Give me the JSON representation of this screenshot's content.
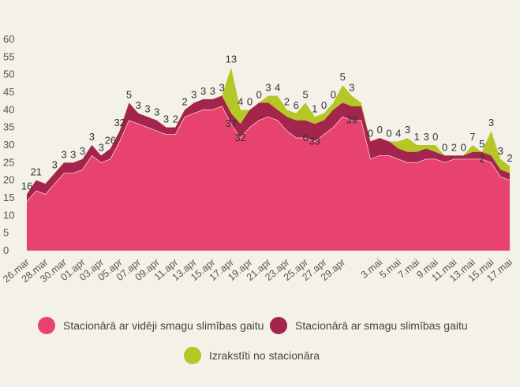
{
  "chart_data": {
    "type": "area",
    "stacked": true,
    "yticks": [
      0,
      5,
      10,
      15,
      20,
      25,
      30,
      35,
      40,
      45,
      50,
      55,
      60
    ],
    "ylim": [
      0,
      60
    ],
    "xtick_labels": [
      "26.mar",
      "28.mar",
      "30.mar",
      "01.apr",
      "03.apr",
      "05.apr",
      "07.apr",
      "09.apr",
      "11.apr",
      "13.apr",
      "15.apr",
      "17.apr",
      "19.apr",
      "21.apr",
      "23.apr",
      "25.apr",
      "27.apr",
      "29.apr",
      "3.mai",
      "5.mai",
      "7.mai",
      "9.mai",
      "11.mai",
      "13.mai",
      "15.mai",
      "17.mai"
    ],
    "x": [
      "26.mar",
      "27.mar",
      "28.mar",
      "29.mar",
      "30.mar",
      "31.mar",
      "01.apr",
      "02.apr",
      "03.apr",
      "04.apr",
      "05.apr",
      "06.apr",
      "07.apr",
      "08.apr",
      "09.apr",
      "10.apr",
      "11.apr",
      "12.apr",
      "13.apr",
      "14.apr",
      "15.apr",
      "16.apr",
      "17.apr",
      "18.apr",
      "19.apr",
      "20.apr",
      "21.apr",
      "22.apr",
      "23.apr",
      "24.apr",
      "25.apr",
      "26.apr",
      "27.apr",
      "28.apr",
      "29.apr",
      "30.apr",
      "1.mai",
      "2.mai",
      "3.mai",
      "4.mai",
      "5.mai",
      "6.mai",
      "7.mai",
      "8.mai",
      "9.mai",
      "10.mai",
      "11.mai",
      "12.mai",
      "13.mai",
      "14.mai",
      "15.mai",
      "16.mai",
      "17.mai"
    ],
    "series": [
      {
        "name": "Stacionārā ar vidēji smagu slimības gaitu",
        "color": "#e8436e",
        "values": [
          14,
          17,
          16,
          19,
          22,
          22,
          23,
          27,
          25,
          26,
          31,
          37,
          36,
          35,
          34,
          33,
          33,
          38,
          39,
          40,
          40,
          41,
          36,
          32,
          35,
          37,
          38,
          37,
          34,
          32,
          32,
          31,
          33,
          35,
          38,
          37,
          37,
          26,
          27,
          27,
          26,
          25,
          25,
          26,
          26,
          25,
          26,
          26,
          26,
          26,
          25,
          21,
          20
        ]
      },
      {
        "name": "Stacionārā ar smagu slimības gaitu",
        "color": "#a3254e",
        "values": [
          2,
          3,
          3,
          3,
          3,
          3,
          3,
          3,
          2,
          3,
          3,
          5,
          3,
          3,
          3,
          2,
          2,
          2,
          3,
          3,
          3,
          3,
          3,
          4,
          5,
          5,
          4,
          3,
          4,
          5,
          5,
          5,
          4,
          5,
          4,
          4,
          4,
          5,
          5,
          4,
          3,
          3,
          3,
          3,
          2,
          2,
          1,
          1,
          2,
          2,
          2,
          2,
          2
        ]
      },
      {
        "name": "Izrakstīti no stacionāra",
        "color": "#b5c726",
        "values": [
          0,
          0,
          0,
          0,
          0,
          0,
          0,
          0,
          0,
          0,
          0,
          0,
          0,
          0,
          0,
          0,
          0,
          0,
          0,
          0,
          0,
          0,
          13,
          4,
          0,
          0,
          2,
          4,
          2,
          2,
          5,
          2,
          2,
          2,
          5,
          3,
          1,
          0,
          0,
          0,
          2,
          4,
          2,
          1,
          2,
          0,
          0,
          0,
          2,
          0,
          7,
          3,
          2
        ]
      }
    ],
    "annotations": [
      {
        "x": "26.mar",
        "text": "16"
      },
      {
        "x": "27.mar",
        "text": "21"
      },
      {
        "x": "29.mar",
        "text": "3"
      },
      {
        "x": "30.mar",
        "text": "3"
      },
      {
        "x": "31.mar",
        "text": "3"
      },
      {
        "x": "01.apr",
        "text": "3"
      },
      {
        "x": "02.apr",
        "text": "3"
      },
      {
        "x": "03.apr",
        "text": "3"
      },
      {
        "x": "04.apr",
        "text": "26"
      },
      {
        "x": "05.apr",
        "text": "32"
      },
      {
        "x": "06.apr",
        "text": "5"
      },
      {
        "x": "07.apr",
        "text": "3"
      },
      {
        "x": "08.apr",
        "text": "3"
      },
      {
        "x": "09.apr",
        "text": "3"
      },
      {
        "x": "10.apr",
        "text": "3"
      },
      {
        "x": "11.apr",
        "text": "2"
      },
      {
        "x": "12.apr",
        "text": "2"
      },
      {
        "x": "13.apr",
        "text": "3"
      },
      {
        "x": "14.apr",
        "text": "3"
      },
      {
        "x": "15.apr",
        "text": "3"
      },
      {
        "x": "16.apr",
        "text": "3"
      },
      {
        "x": "17.apr",
        "text": "13"
      },
      {
        "x": "17.apr",
        "text": "37"
      },
      {
        "x": "18.apr",
        "text": "4"
      },
      {
        "x": "18.apr",
        "text": "32"
      },
      {
        "x": "19.apr",
        "text": "0"
      },
      {
        "x": "20.apr",
        "text": "0"
      },
      {
        "x": "21.apr",
        "text": "3"
      },
      {
        "x": "22.apr",
        "text": "4"
      },
      {
        "x": "23.apr",
        "text": "2"
      },
      {
        "x": "24.apr",
        "text": "6"
      },
      {
        "x": "25.apr",
        "text": "5"
      },
      {
        "x": "25.apr",
        "text": "6"
      },
      {
        "x": "26.apr",
        "text": "1"
      },
      {
        "x": "26.apr",
        "text": "33"
      },
      {
        "x": "27.apr",
        "text": "0"
      },
      {
        "x": "28.apr",
        "text": "0"
      },
      {
        "x": "29.apr",
        "text": "5"
      },
      {
        "x": "30.apr",
        "text": "3"
      },
      {
        "x": "30.apr",
        "text": "39"
      },
      {
        "x": "2.mai",
        "text": "0"
      },
      {
        "x": "3.mai",
        "text": "0"
      },
      {
        "x": "4.mai",
        "text": "0"
      },
      {
        "x": "5.mai",
        "text": "4"
      },
      {
        "x": "6.mai",
        "text": "3"
      },
      {
        "x": "7.mai",
        "text": "1"
      },
      {
        "x": "8.mai",
        "text": "3"
      },
      {
        "x": "9.mai",
        "text": "0"
      },
      {
        "x": "10.mai",
        "text": "0"
      },
      {
        "x": "11.mai",
        "text": "2"
      },
      {
        "x": "12.mai",
        "text": "0"
      },
      {
        "x": "13.mai",
        "text": "7"
      },
      {
        "x": "14.mai",
        "text": "5"
      },
      {
        "x": "14.mai",
        "text": "2"
      },
      {
        "x": "15.mai",
        "text": "3"
      },
      {
        "x": "16.mai",
        "text": "3"
      },
      {
        "x": "17.mai",
        "text": "2"
      }
    ],
    "grid": false,
    "legend": "bottom"
  },
  "legend": {
    "items": [
      {
        "label": "Stacionārā ar vidēji smagu slimības gaitu",
        "color": "#e8436e"
      },
      {
        "label": "Stacionārā ar smagu slimības gaitu",
        "color": "#a3254e"
      },
      {
        "label": "Izrakstīti no stacionāra",
        "color": "#b5c726"
      }
    ]
  }
}
